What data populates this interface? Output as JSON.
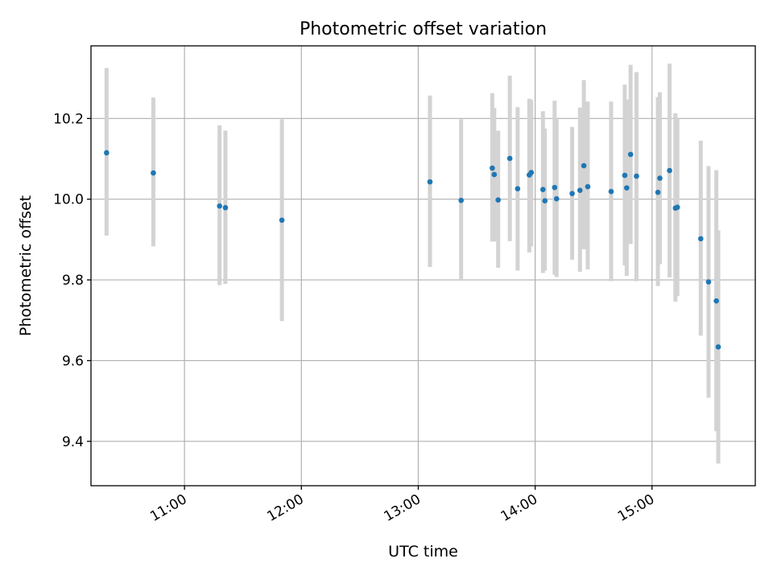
{
  "chart_data": {
    "type": "scatter",
    "title": "Photometric offset variation",
    "xlabel": "UTC time",
    "ylabel": "Photometric offset",
    "xlim": [
      "10:12",
      "15:53"
    ],
    "ylim": [
      9.29,
      10.38
    ],
    "xticks": [
      "11:00",
      "12:00",
      "13:00",
      "14:00",
      "15:00"
    ],
    "yticks": [
      9.4,
      9.6,
      9.8,
      10.0,
      10.2
    ],
    "yticklabels": [
      "9.4",
      "9.6",
      "9.8",
      "10.0",
      "10.2"
    ],
    "grid": true,
    "series": [
      {
        "marker_color": "#1f77b4",
        "errorbar_color": "#d3d3d3",
        "points": [
          {
            "x": "10:20",
            "y": 10.115,
            "ylo": 9.91,
            "yhi": 10.325
          },
          {
            "x": "10:44",
            "y": 10.065,
            "ylo": 9.883,
            "yhi": 10.252
          },
          {
            "x": "11:18",
            "y": 9.983,
            "ylo": 9.787,
            "yhi": 10.183
          },
          {
            "x": "11:21",
            "y": 9.979,
            "ylo": 9.79,
            "yhi": 10.17
          },
          {
            "x": "11:50",
            "y": 9.948,
            "ylo": 9.698,
            "yhi": 10.198
          },
          {
            "x": "13:06",
            "y": 10.043,
            "ylo": 9.832,
            "yhi": 10.257
          },
          {
            "x": "13:22",
            "y": 9.997,
            "ylo": 9.798,
            "yhi": 10.198
          },
          {
            "x": "13:38",
            "y": 10.077,
            "ylo": 9.895,
            "yhi": 10.263
          },
          {
            "x": "13:39",
            "y": 10.061,
            "ylo": 9.895,
            "yhi": 10.226
          },
          {
            "x": "13:41",
            "y": 9.998,
            "ylo": 9.83,
            "yhi": 10.17
          },
          {
            "x": "13:47",
            "y": 10.101,
            "ylo": 9.896,
            "yhi": 10.306
          },
          {
            "x": "13:51",
            "y": 10.026,
            "ylo": 9.823,
            "yhi": 10.228
          },
          {
            "x": "13:57",
            "y": 10.06,
            "ylo": 9.868,
            "yhi": 10.249
          },
          {
            "x": "13:58",
            "y": 10.066,
            "ylo": 9.883,
            "yhi": 10.246
          },
          {
            "x": "14:04",
            "y": 10.024,
            "ylo": 9.817,
            "yhi": 10.218
          },
          {
            "x": "14:05",
            "y": 9.996,
            "ylo": 9.823,
            "yhi": 10.175
          },
          {
            "x": "14:10",
            "y": 10.029,
            "ylo": 9.813,
            "yhi": 10.244
          },
          {
            "x": "14:11",
            "y": 10.001,
            "ylo": 9.807,
            "yhi": 10.198
          },
          {
            "x": "14:19",
            "y": 10.014,
            "ylo": 9.85,
            "yhi": 10.179
          },
          {
            "x": "14:23",
            "y": 10.022,
            "ylo": 9.82,
            "yhi": 10.227
          },
          {
            "x": "14:25",
            "y": 10.083,
            "ylo": 9.876,
            "yhi": 10.295
          },
          {
            "x": "14:27",
            "y": 10.031,
            "ylo": 9.826,
            "yhi": 10.242
          },
          {
            "x": "14:39",
            "y": 10.019,
            "ylo": 9.797,
            "yhi": 10.242
          },
          {
            "x": "14:46",
            "y": 10.059,
            "ylo": 9.836,
            "yhi": 10.284
          },
          {
            "x": "14:47",
            "y": 10.028,
            "ylo": 9.81,
            "yhi": 10.247
          },
          {
            "x": "14:49",
            "y": 10.111,
            "ylo": 9.889,
            "yhi": 10.333
          },
          {
            "x": "14:52",
            "y": 10.057,
            "ylo": 9.797,
            "yhi": 10.315
          },
          {
            "x": "15:03",
            "y": 10.017,
            "ylo": 9.785,
            "yhi": 10.253
          },
          {
            "x": "15:04",
            "y": 10.052,
            "ylo": 9.839,
            "yhi": 10.265
          },
          {
            "x": "15:09",
            "y": 10.071,
            "ylo": 9.806,
            "yhi": 10.336
          },
          {
            "x": "15:12",
            "y": 9.978,
            "ylo": 9.746,
            "yhi": 10.213
          },
          {
            "x": "15:13",
            "y": 9.98,
            "ylo": 9.76,
            "yhi": 10.2
          },
          {
            "x": "15:25",
            "y": 9.902,
            "ylo": 9.662,
            "yhi": 10.145
          },
          {
            "x": "15:29",
            "y": 9.795,
            "ylo": 9.508,
            "yhi": 10.082
          },
          {
            "x": "15:33",
            "y": 9.748,
            "ylo": 9.425,
            "yhi": 10.072
          },
          {
            "x": "15:34",
            "y": 9.634,
            "ylo": 9.345,
            "yhi": 9.923
          }
        ]
      }
    ]
  }
}
